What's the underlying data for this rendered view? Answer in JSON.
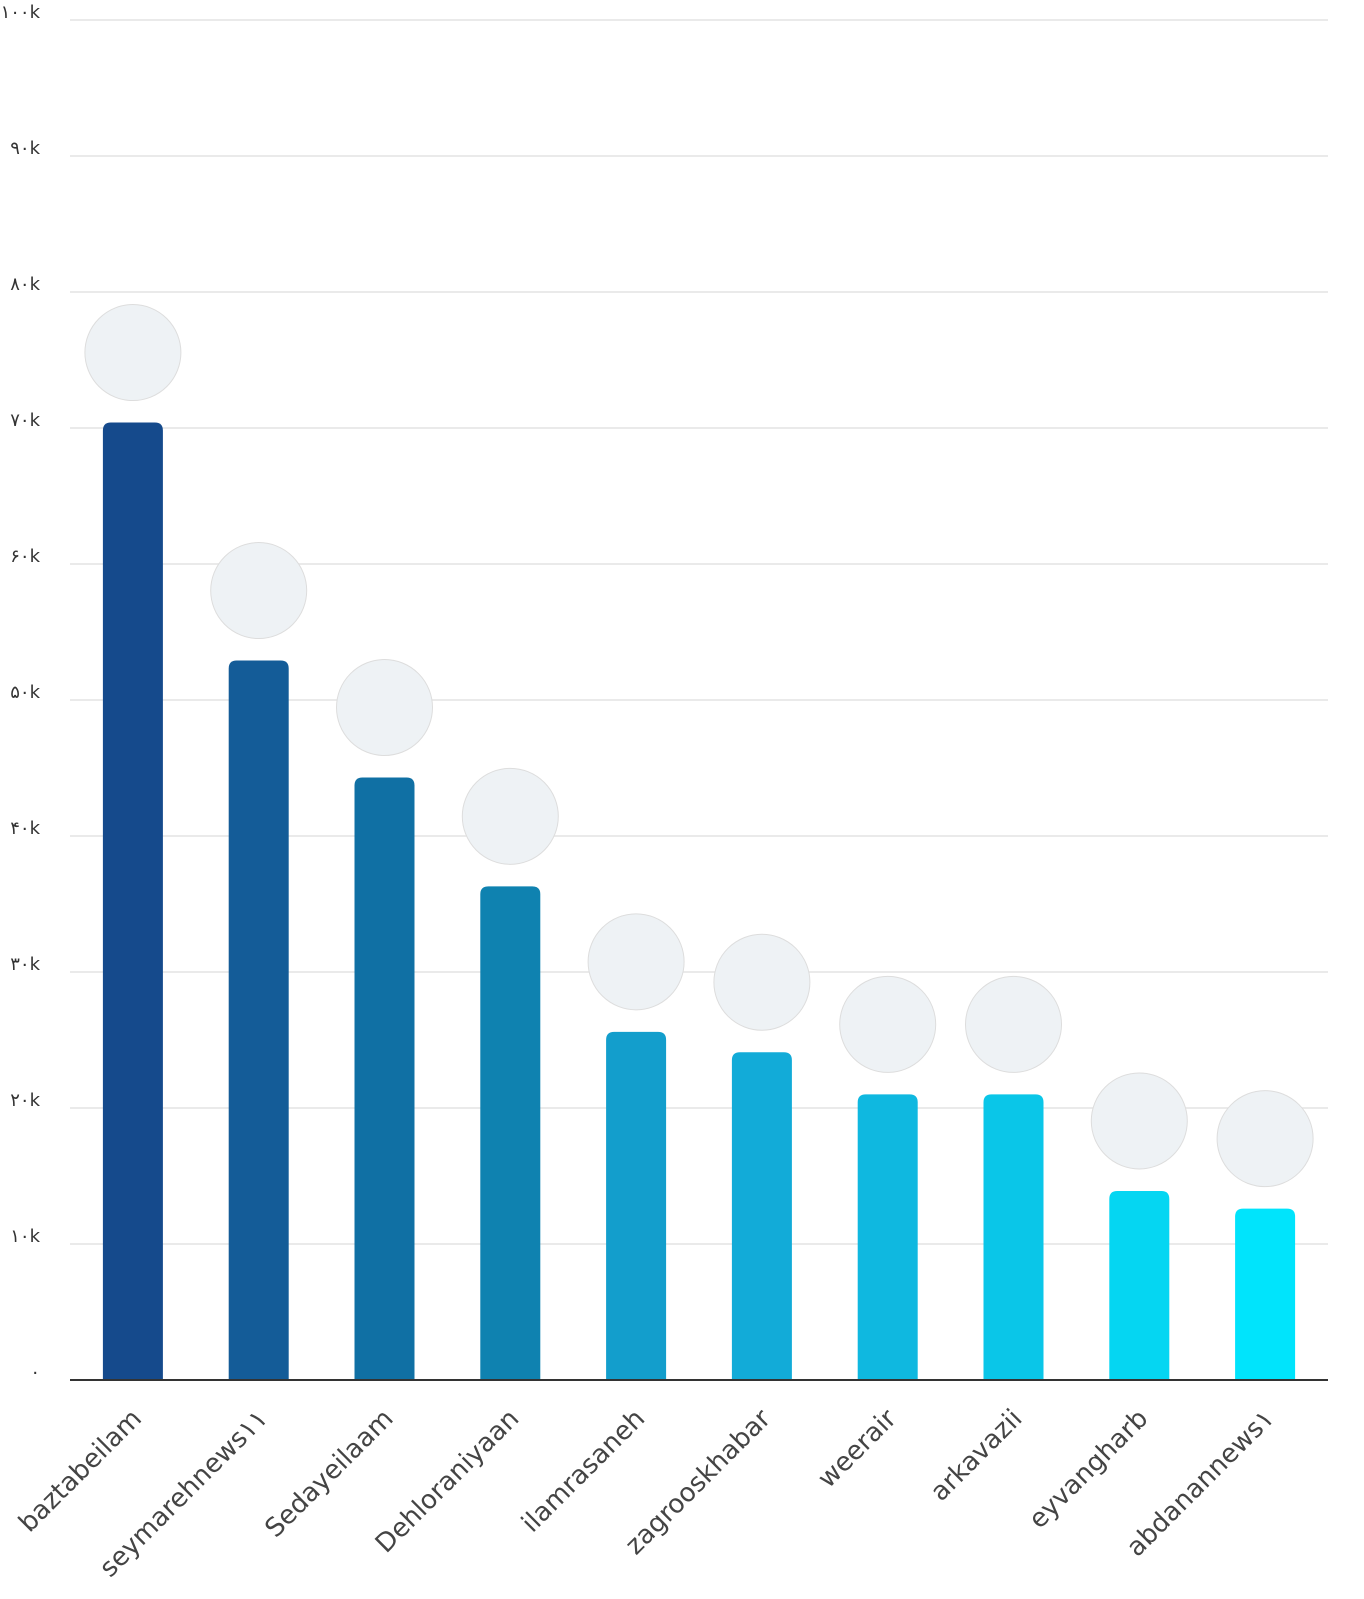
{
  "chart_data": {
    "type": "bar",
    "categories": [
      "baztabeilam",
      "seymarehnews۱۱",
      "Sedayeilaam",
      "Dehloraniyaan",
      "ilamrasaneh",
      "zagrooskhabar",
      "weerair",
      "arkavazii",
      "eyvangharb",
      "abdanannews۱"
    ],
    "values": [
      70400,
      52900,
      44300,
      36300,
      25600,
      24100,
      21000,
      21000,
      13900,
      12600
    ],
    "colors": [
      "#154a8c",
      "#145c98",
      "#1070a4",
      "#0f82b0",
      "#139ecc",
      "#12abd8",
      "#0fb8e0",
      "#0ac6e8",
      "#05d6f2",
      "#00e4fc"
    ],
    "ylim": [
      0,
      100000
    ],
    "yticks": [
      {
        "value": 0,
        "label": "۰"
      },
      {
        "value": 10000,
        "label": "۱۰k"
      },
      {
        "value": 20000,
        "label": "۲۰k"
      },
      {
        "value": 30000,
        "label": "۳۰k"
      },
      {
        "value": 40000,
        "label": "۴۰k"
      },
      {
        "value": 50000,
        "label": "۵۰k"
      },
      {
        "value": 60000,
        "label": "۶۰k"
      },
      {
        "value": 70000,
        "label": "۷۰k"
      },
      {
        "value": 80000,
        "label": "۸۰k"
      },
      {
        "value": 90000,
        "label": "۹۰k"
      },
      {
        "value": 100000,
        "label": "۱۰۰k"
      }
    ],
    "grid": true
  }
}
